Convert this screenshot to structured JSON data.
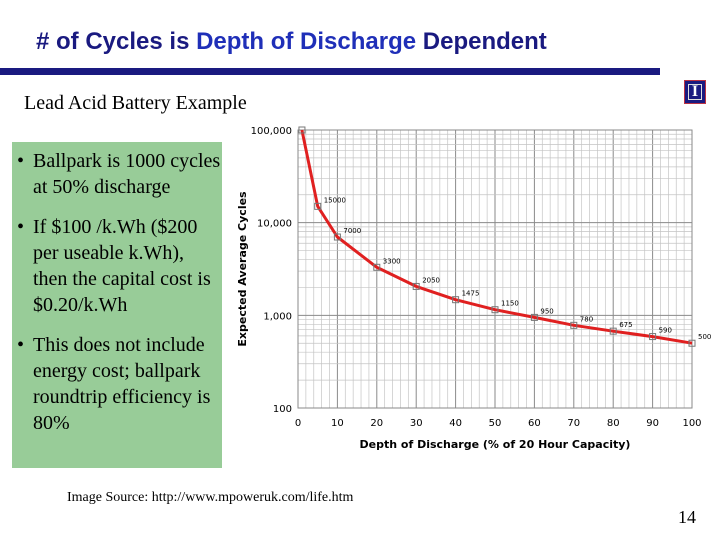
{
  "slide": {
    "title_prefix": "# of Cycles is ",
    "title_highlight": "Depth of Discharge",
    "title_suffix": " Dependent",
    "subtitle": "Lead Acid Battery Example",
    "logo_letter": "I",
    "bullets": [
      "Ballpark is 1000 cycles at 50% discharge",
      "If $100 /k.Wh ($200 per useable k.Wh), then the capital cost is $0.20/k.Wh",
      "This does not include energy cost; ballpark roundtrip efficiency is 80%"
    ],
    "image_source": "Image Source: http://www.mpoweruk.com/life.htm",
    "page_number": "14",
    "colors": {
      "title": "#1a1a80",
      "highlight": "#1f2fb8",
      "panel": "#98cc98",
      "series": "#e02020"
    }
  },
  "chart_data": {
    "type": "line",
    "xlabel": "Depth of Discharge (% of 20 Hour Capacity)",
    "ylabel": "Expected Average Cycles",
    "scale_y": "log",
    "xlim": [
      0,
      100
    ],
    "ylim": [
      100,
      100000
    ],
    "x_ticks": [
      "0",
      "10",
      "20",
      "30",
      "40",
      "50",
      "60",
      "70",
      "80",
      "90",
      "100"
    ],
    "y_ticks": [
      "100",
      "1,000",
      "10,000",
      "100,000"
    ],
    "grid": true,
    "series": [
      {
        "x": [
          1,
          5,
          10,
          20,
          30,
          40,
          50,
          60,
          70,
          80,
          90,
          100
        ],
        "y": [
          100000,
          15000,
          7000,
          3300,
          2050,
          1475,
          1150,
          950,
          780,
          675,
          590,
          500
        ],
        "labels": [
          "",
          "15000",
          "7000",
          "3300",
          "2050",
          "1475",
          "1150",
          "950",
          "780",
          "675",
          "590",
          "500"
        ]
      }
    ]
  }
}
